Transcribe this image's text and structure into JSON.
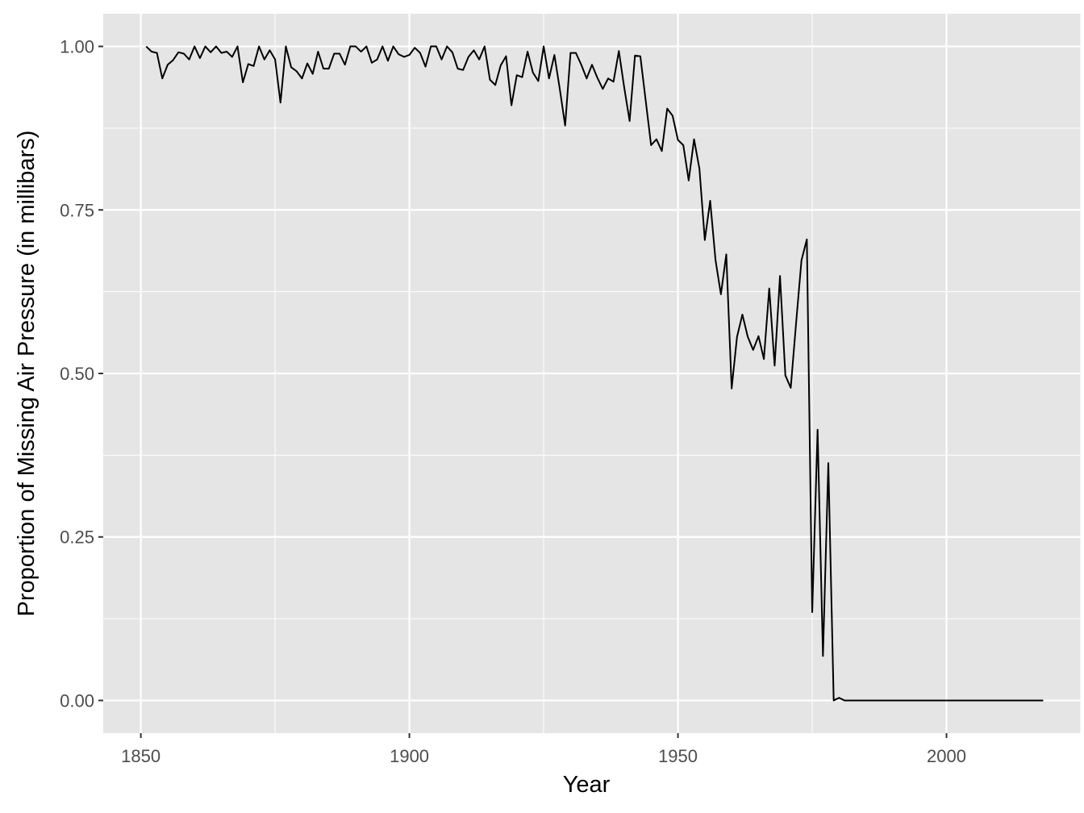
{
  "chart_data": {
    "type": "line",
    "title": "",
    "xlabel": "Year",
    "ylabel": "Proportion of Missing Air Pressure (in millibars)",
    "xlim": [
      1843,
      2025
    ],
    "ylim": [
      -0.05,
      1.05
    ],
    "x_ticks": [
      1850,
      1900,
      1950,
      2000
    ],
    "x_tick_labels": [
      "1850",
      "1900",
      "1950",
      "2000"
    ],
    "y_ticks": [
      0,
      0.25,
      0.5,
      0.75,
      1
    ],
    "y_tick_labels": [
      "0.00",
      "0.25",
      "0.50",
      "0.75",
      "1.00"
    ],
    "grid": true,
    "legend": "none",
    "colors": {
      "panel": "#e5e5e5",
      "grid": "#ffffff",
      "line": "#000000"
    },
    "series": [
      {
        "x": [
          1851,
          1852,
          1853,
          1854,
          1855,
          1856,
          1857,
          1858,
          1859,
          1860,
          1861,
          1862,
          1863,
          1864,
          1865,
          1866,
          1867,
          1868,
          1869,
          1870,
          1871,
          1872,
          1873,
          1874,
          1875,
          1876,
          1877,
          1878,
          1879,
          1880,
          1881,
          1882,
          1883,
          1884,
          1885,
          1886,
          1887,
          1888,
          1889,
          1890,
          1891,
          1892,
          1893,
          1894,
          1895,
          1896,
          1897,
          1898,
          1899,
          1900,
          1901,
          1902,
          1903,
          1904,
          1905,
          1906,
          1907,
          1908,
          1909,
          1910,
          1911,
          1912,
          1913,
          1914,
          1915,
          1916,
          1917,
          1918,
          1919,
          1920,
          1921,
          1922,
          1923,
          1924,
          1925,
          1926,
          1927,
          1928,
          1929,
          1930,
          1931,
          1932,
          1933,
          1934,
          1935,
          1936,
          1937,
          1938,
          1939,
          1940,
          1941,
          1942,
          1943,
          1944,
          1945,
          1946,
          1947,
          1948,
          1949,
          1950,
          1951,
          1952,
          1953,
          1954,
          1955,
          1956,
          1957,
          1958,
          1959,
          1960,
          1961,
          1962,
          1963,
          1964,
          1965,
          1966,
          1967,
          1968,
          1969,
          1970,
          1971,
          1972,
          1973,
          1974,
          1975,
          1976,
          1977,
          1978,
          1979,
          1980,
          1981,
          1982,
          1983,
          1984,
          1985,
          1986,
          1987,
          1988,
          1989,
          1990,
          1991,
          1992,
          1993,
          1994,
          1995,
          1996,
          1997,
          1998,
          1999,
          2000,
          2001,
          2002,
          2003,
          2004,
          2005,
          2006,
          2007,
          2008,
          2009,
          2010,
          2011,
          2012,
          2013,
          2014,
          2015,
          2016,
          2017,
          2018
        ],
        "y": [
          1.0,
          0.992,
          0.99,
          0.951,
          0.972,
          0.979,
          0.991,
          0.989,
          0.98,
          1.0,
          0.982,
          1.0,
          0.991,
          1.0,
          0.99,
          0.992,
          0.984,
          1.0,
          0.945,
          0.973,
          0.97,
          1.0,
          0.98,
          0.994,
          0.98,
          0.914,
          1.0,
          0.968,
          0.962,
          0.951,
          0.974,
          0.958,
          0.992,
          0.966,
          0.966,
          0.989,
          0.989,
          0.972,
          1.0,
          1.0,
          0.992,
          1.0,
          0.975,
          0.98,
          1.0,
          0.978,
          1.0,
          0.988,
          0.984,
          0.987,
          0.998,
          0.99,
          0.969,
          1.0,
          1.0,
          0.98,
          1.0,
          0.991,
          0.966,
          0.964,
          0.984,
          0.994,
          0.98,
          1.0,
          0.949,
          0.941,
          0.971,
          0.985,
          0.91,
          0.956,
          0.953,
          0.992,
          0.96,
          0.947,
          1.0,
          0.951,
          0.987,
          0.935,
          0.879,
          0.99,
          0.99,
          0.972,
          0.951,
          0.972,
          0.952,
          0.935,
          0.951,
          0.946,
          0.993,
          0.937,
          0.886,
          0.986,
          0.985,
          0.917,
          0.849,
          0.858,
          0.84,
          0.905,
          0.894,
          0.857,
          0.849,
          0.795,
          0.858,
          0.813,
          0.704,
          0.764,
          0.673,
          0.621,
          0.682,
          0.477,
          0.556,
          0.59,
          0.556,
          0.536,
          0.557,
          0.522,
          0.63,
          0.512,
          0.649,
          0.497,
          0.478,
          0.577,
          0.673,
          0.705,
          0.135,
          0.414,
          0.068,
          0.363,
          0.0,
          0.004,
          0.0,
          0.0,
          0.0,
          0.0,
          0.0,
          0.0,
          0.0,
          0.0,
          0.0,
          0.0,
          0.0,
          0.0,
          0.0,
          0.0,
          0.0,
          0.0,
          0.0,
          0.0,
          0.0,
          0.0,
          0.0,
          0.0,
          0.0,
          0.0,
          0.0,
          0.0,
          0.0,
          0.0,
          0.0,
          0.0,
          0.0,
          0.0,
          0.0,
          0.0,
          0.0,
          0.0,
          0.0,
          0.0
        ]
      }
    ]
  }
}
